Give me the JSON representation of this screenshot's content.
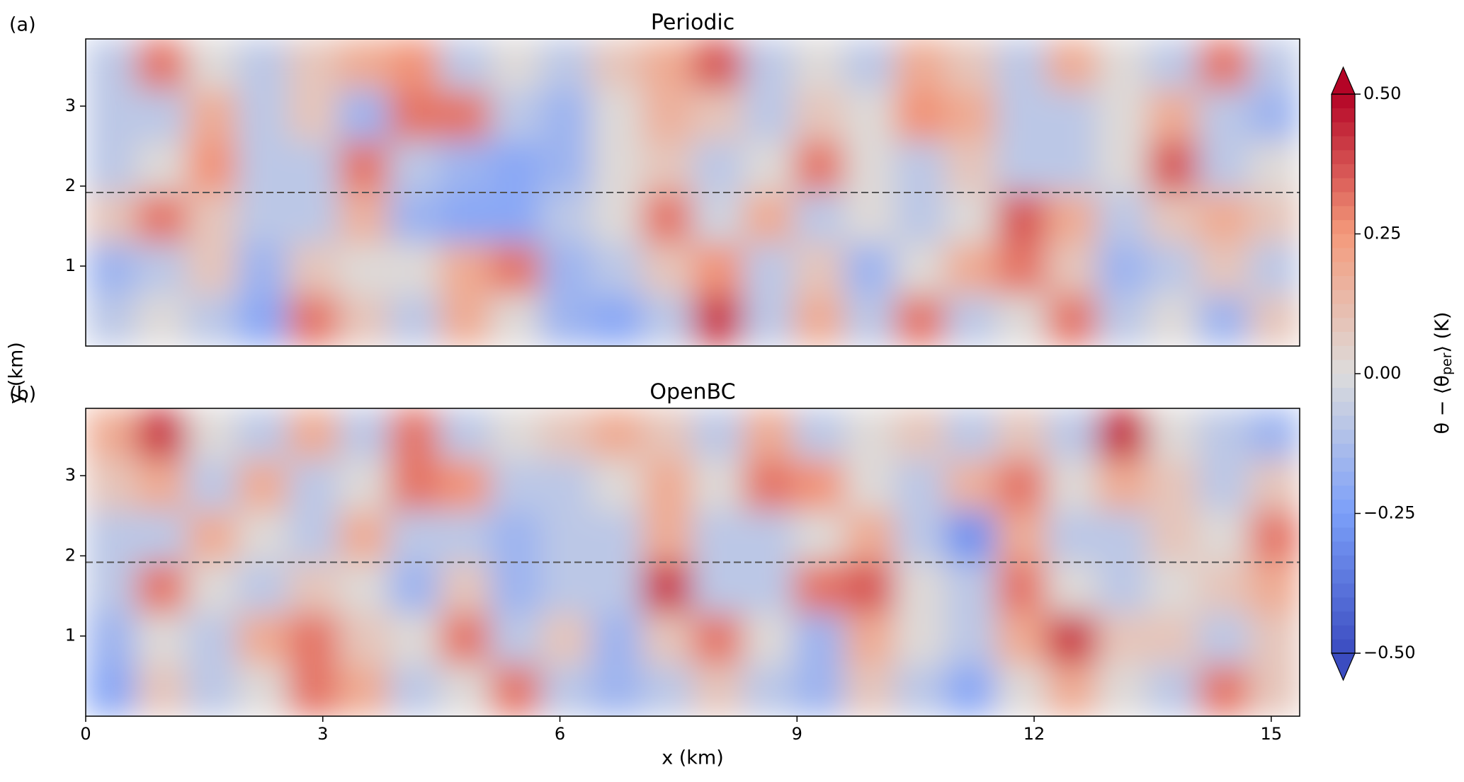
{
  "chart_data": {
    "type": "heatmap",
    "xlabel": "x (km)",
    "ylabel": "y (km)",
    "xlim": [
      0,
      15.36
    ],
    "ylim": [
      0,
      3.84
    ],
    "xticks": [
      0,
      3,
      6,
      9,
      12,
      15
    ],
    "yticks": [
      1,
      2,
      3
    ],
    "hline": 1.92,
    "x": [
      0.32,
      0.96,
      1.6,
      2.24,
      2.88,
      3.52,
      4.16,
      4.8,
      5.44,
      6.08,
      6.72,
      7.36,
      8.0,
      8.64,
      9.28,
      9.92,
      10.56,
      11.2,
      11.84,
      12.48,
      13.12,
      13.76,
      14.4,
      15.04
    ],
    "y": [
      3.52,
      2.88,
      2.24,
      1.6,
      0.96,
      0.32
    ],
    "panels": [
      {
        "panel_label": "(a)",
        "title": "Periodic",
        "z": [
          [
            -0.1,
            0.3,
            0.0,
            -0.1,
            0.1,
            0.2,
            0.25,
            -0.1,
            0.0,
            -0.1,
            0.1,
            0.2,
            0.35,
            -0.1,
            0.0,
            -0.1,
            0.2,
            0.1,
            -0.1,
            0.2,
            0.0,
            -0.1,
            0.3,
            -0.1
          ],
          [
            -0.1,
            -0.1,
            0.2,
            -0.1,
            0.1,
            -0.15,
            0.3,
            0.3,
            -0.1,
            -0.15,
            0.0,
            0.15,
            0.1,
            -0.1,
            0.1,
            0.0,
            0.25,
            0.2,
            -0.1,
            -0.1,
            0.0,
            0.2,
            -0.1,
            -0.15
          ],
          [
            -0.1,
            0.0,
            0.25,
            -0.1,
            -0.1,
            0.3,
            -0.1,
            -0.15,
            -0.2,
            -0.15,
            0.0,
            0.1,
            -0.1,
            0.0,
            0.3,
            0.0,
            -0.1,
            0.1,
            -0.1,
            -0.1,
            0.0,
            0.35,
            -0.1,
            0.0
          ],
          [
            0.1,
            0.3,
            0.1,
            -0.1,
            -0.1,
            0.15,
            -0.15,
            -0.2,
            -0.2,
            -0.1,
            0.0,
            0.3,
            -0.05,
            0.2,
            -0.1,
            0.0,
            -0.1,
            0.0,
            0.35,
            0.2,
            -0.1,
            0.1,
            0.2,
            0.1
          ],
          [
            -0.15,
            -0.1,
            0.1,
            -0.15,
            0.1,
            0.0,
            0.0,
            0.2,
            0.3,
            -0.15,
            -0.1,
            0.1,
            0.25,
            -0.1,
            0.1,
            -0.15,
            0.0,
            0.2,
            0.3,
            0.1,
            -0.15,
            -0.1,
            0.1,
            -0.1
          ],
          [
            -0.1,
            0.0,
            -0.1,
            -0.2,
            0.3,
            0.1,
            -0.1,
            0.2,
            0.0,
            -0.15,
            -0.2,
            -0.1,
            0.4,
            -0.1,
            0.2,
            -0.1,
            0.3,
            -0.1,
            0.0,
            0.3,
            -0.1,
            0.0,
            -0.15,
            0.1
          ]
        ]
      },
      {
        "panel_label": "(b)",
        "title": "OpenBC",
        "z": [
          [
            0.2,
            0.4,
            0.0,
            -0.1,
            0.2,
            -0.1,
            0.3,
            -0.1,
            0.0,
            0.1,
            0.2,
            0.1,
            -0.1,
            0.2,
            -0.1,
            0.0,
            0.1,
            -0.1,
            0.1,
            -0.1,
            0.45,
            0.0,
            -0.1,
            -0.15
          ],
          [
            0.1,
            0.2,
            -0.1,
            0.2,
            -0.1,
            0.0,
            0.3,
            0.25,
            -0.1,
            -0.1,
            0.0,
            0.2,
            0.0,
            0.3,
            0.25,
            0.0,
            -0.1,
            0.15,
            0.3,
            0.0,
            0.2,
            0.1,
            -0.1,
            0.1
          ],
          [
            -0.1,
            -0.1,
            0.2,
            0.0,
            -0.1,
            0.2,
            -0.1,
            -0.1,
            -0.15,
            -0.1,
            -0.1,
            0.2,
            -0.1,
            -0.1,
            0.0,
            0.2,
            -0.1,
            -0.3,
            0.2,
            -0.1,
            -0.1,
            0.1,
            0.0,
            0.3
          ],
          [
            -0.1,
            0.3,
            0.0,
            -0.1,
            0.1,
            0.0,
            -0.15,
            0.1,
            -0.15,
            -0.1,
            -0.1,
            0.4,
            -0.1,
            -0.1,
            0.3,
            0.35,
            0.0,
            -0.1,
            0.3,
            0.0,
            -0.1,
            0.0,
            0.1,
            0.2
          ],
          [
            -0.15,
            0.0,
            -0.1,
            0.2,
            0.3,
            0.1,
            0.0,
            0.3,
            -0.1,
            0.1,
            -0.15,
            0.1,
            0.3,
            0.0,
            -0.15,
            0.2,
            0.0,
            -0.1,
            0.2,
            0.4,
            0.1,
            0.1,
            -0.1,
            0.1
          ],
          [
            -0.2,
            0.1,
            -0.1,
            0.0,
            0.3,
            0.2,
            -0.1,
            0.0,
            0.3,
            -0.1,
            -0.15,
            -0.1,
            0.1,
            -0.1,
            -0.15,
            0.1,
            -0.1,
            -0.2,
            0.0,
            0.2,
            0.0,
            -0.1,
            0.3,
            0.1
          ]
        ]
      }
    ],
    "colorbar": {
      "clim": [
        -0.5,
        0.5
      ],
      "levels": 40,
      "colors": [
        "#3b4cc0",
        "#7b9ff9",
        "#dddcdc",
        "#f49a7b",
        "#b40426"
      ],
      "ticks": [
        {
          "value": 0.5,
          "label": "0.50"
        },
        {
          "value": 0.25,
          "label": "0.25"
        },
        {
          "value": 0,
          "label": "0.00"
        },
        {
          "value": -0.25,
          "label": "−0.25"
        },
        {
          "value": -0.5,
          "label": "−0.50"
        }
      ],
      "label_main": "θ − ⟨θ",
      "label_sub": "per",
      "label_end": "⟩ (K)"
    }
  }
}
